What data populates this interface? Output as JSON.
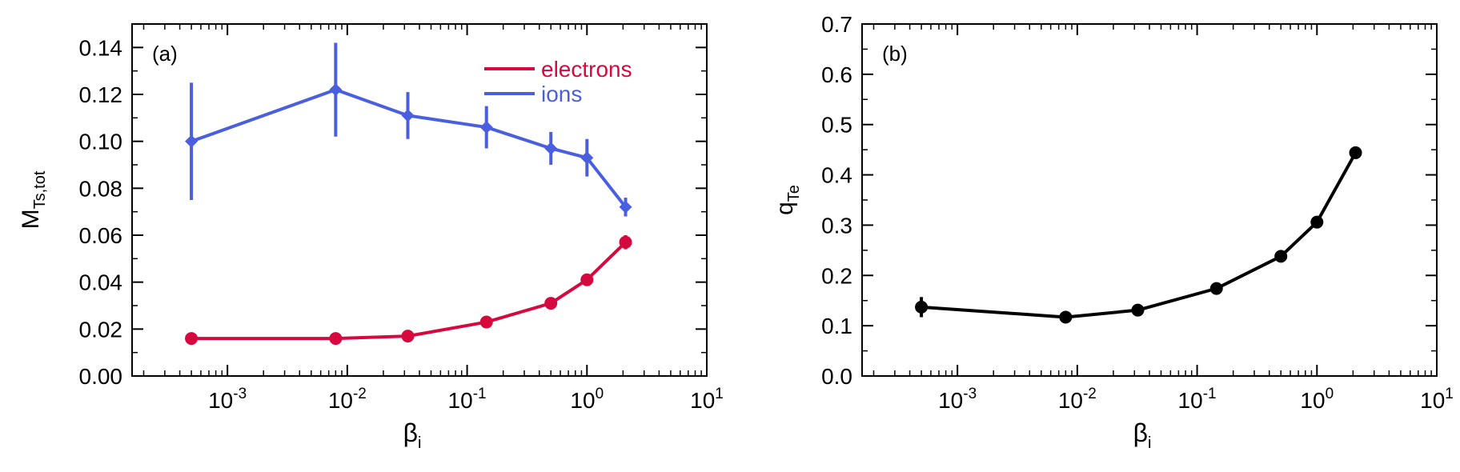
{
  "chart_data": [
    {
      "type": "line",
      "panel_label": "(a)",
      "xlabel": "β",
      "xlabel_sub": "i",
      "ylabel": "M",
      "ylabel_sub": "Ts,tot",
      "x_scale": "log",
      "xlim": [
        0.00016,
        10
      ],
      "ylim": [
        0,
        0.15
      ],
      "x_ticks": [
        {
          "value": 0.001,
          "base": "10",
          "exp": "-3"
        },
        {
          "value": 0.01,
          "base": "10",
          "exp": "-2"
        },
        {
          "value": 0.1,
          "base": "10",
          "exp": "-1"
        },
        {
          "value": 1,
          "base": "10",
          "exp": "0"
        },
        {
          "value": 10,
          "base": "10",
          "exp": "1"
        }
      ],
      "y_ticks": [
        "0.00",
        "0.02",
        "0.04",
        "0.06",
        "0.08",
        "0.10",
        "0.12",
        "0.14"
      ],
      "y_tick_values": [
        0,
        0.02,
        0.04,
        0.06,
        0.08,
        0.1,
        0.12,
        0.14
      ],
      "grid": false,
      "legend_position": "top-right",
      "series": [
        {
          "name": "electrons",
          "color": "#d6093f",
          "marker": "circle",
          "x": [
            0.0005,
            0.008,
            0.032,
            0.145,
            0.5,
            1.0,
            2.1
          ],
          "y": [
            0.016,
            0.016,
            0.017,
            0.023,
            0.031,
            0.041,
            0.057
          ],
          "yerr": [
            0.002,
            0.002,
            0.002,
            0.002,
            0.002,
            0.002,
            0.003
          ]
        },
        {
          "name": "ions",
          "color": "#4a5ee0",
          "marker": "diamond",
          "x": [
            0.0005,
            0.008,
            0.032,
            0.145,
            0.5,
            1.0,
            2.1
          ],
          "y": [
            0.1,
            0.122,
            0.111,
            0.106,
            0.097,
            0.093,
            0.072
          ],
          "yerr": [
            0.025,
            0.02,
            0.01,
            0.009,
            0.007,
            0.008,
            0.004
          ]
        }
      ]
    },
    {
      "type": "line",
      "panel_label": "(b)",
      "xlabel": "β",
      "xlabel_sub": "i",
      "ylabel": "q",
      "ylabel_sub": "Te",
      "x_scale": "log",
      "xlim": [
        0.00016,
        10
      ],
      "ylim": [
        0,
        0.7
      ],
      "x_ticks": [
        {
          "value": 0.001,
          "base": "10",
          "exp": "-3"
        },
        {
          "value": 0.01,
          "base": "10",
          "exp": "-2"
        },
        {
          "value": 0.1,
          "base": "10",
          "exp": "-1"
        },
        {
          "value": 1,
          "base": "10",
          "exp": "0"
        },
        {
          "value": 10,
          "base": "10",
          "exp": "1"
        }
      ],
      "y_ticks": [
        "0.0",
        "0.1",
        "0.2",
        "0.3",
        "0.4",
        "0.5",
        "0.6",
        "0.7"
      ],
      "y_tick_values": [
        0,
        0.1,
        0.2,
        0.3,
        0.4,
        0.5,
        0.6,
        0.7
      ],
      "grid": false,
      "series": [
        {
          "color": "#000000",
          "marker": "circle",
          "x": [
            0.0005,
            0.008,
            0.032,
            0.145,
            0.5,
            1.0,
            2.1
          ],
          "y": [
            0.137,
            0.117,
            0.131,
            0.174,
            0.238,
            0.306,
            0.444
          ],
          "yerr": [
            0.02,
            0.007,
            0.012,
            0.012,
            0.006,
            0.006,
            0.005
          ]
        }
      ]
    }
  ]
}
